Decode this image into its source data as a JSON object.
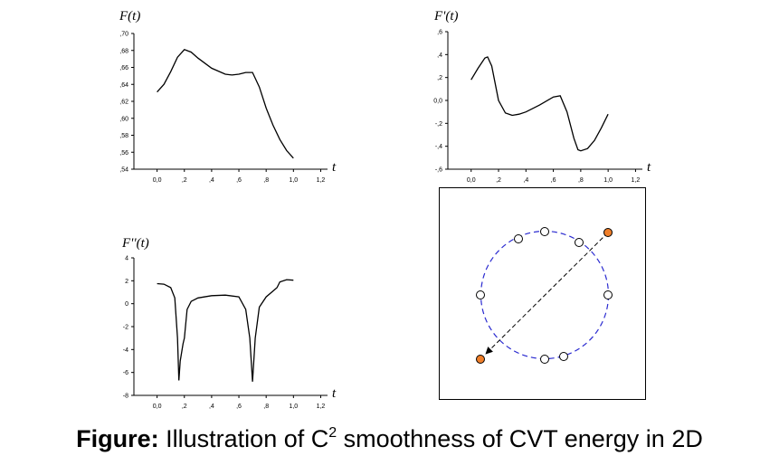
{
  "chart_data": [
    {
      "type": "line",
      "ylabel": "F(t)",
      "xlabel": "t",
      "x": [
        0,
        0.05,
        0.1,
        0.15,
        0.2,
        0.25,
        0.3,
        0.4,
        0.5,
        0.55,
        0.6,
        0.65,
        0.7,
        0.75,
        0.8,
        0.85,
        0.9,
        0.95,
        1.0
      ],
      "series": [
        {
          "color": "#000000",
          "values": [
            0.631,
            0.64,
            0.655,
            0.672,
            0.681,
            0.678,
            0.671,
            0.659,
            0.652,
            0.651,
            0.652,
            0.654,
            0.654,
            0.637,
            0.612,
            0.592,
            0.575,
            0.562,
            0.553
          ]
        }
      ],
      "xlim": [
        -0.17,
        1.25
      ],
      "xticks": [
        {
          "value": 0,
          "label": "0,0"
        },
        {
          "value": 0.2,
          "label": ",2"
        },
        {
          "value": 0.4,
          "label": ",4"
        },
        {
          "value": 0.6,
          "label": ",6"
        },
        {
          "value": 0.8,
          "label": ",8"
        },
        {
          "value": 1.0,
          "label": "1,0"
        },
        {
          "value": 1.2,
          "label": "1,2"
        }
      ],
      "ylim": [
        0.54,
        0.7
      ],
      "yticks": [
        {
          "value": 0.54,
          "label": ",54"
        },
        {
          "value": 0.56,
          "label": ",56"
        },
        {
          "value": 0.58,
          "label": ",58"
        },
        {
          "value": 0.6,
          "label": ",60"
        },
        {
          "value": 0.62,
          "label": ",62"
        },
        {
          "value": 0.64,
          "label": ",64"
        },
        {
          "value": 0.66,
          "label": ",66"
        },
        {
          "value": 0.68,
          "label": ",68"
        },
        {
          "value": 0.7,
          "label": ",70"
        }
      ]
    },
    {
      "type": "line",
      "ylabel": "F'(t)",
      "xlabel": "t",
      "x": [
        0,
        0.05,
        0.1,
        0.12,
        0.15,
        0.2,
        0.25,
        0.3,
        0.35,
        0.4,
        0.5,
        0.6,
        0.65,
        0.7,
        0.75,
        0.78,
        0.8,
        0.85,
        0.9,
        0.95,
        1.0
      ],
      "series": [
        {
          "color": "#000000",
          "values": [
            0.18,
            0.28,
            0.37,
            0.38,
            0.3,
            0.0,
            -0.11,
            -0.13,
            -0.12,
            -0.1,
            -0.04,
            0.03,
            0.04,
            -0.1,
            -0.33,
            -0.43,
            -0.44,
            -0.42,
            -0.35,
            -0.24,
            -0.12
          ]
        }
      ],
      "xlim": [
        -0.17,
        1.25
      ],
      "xticks": [
        {
          "value": 0,
          "label": "0,0"
        },
        {
          "value": 0.2,
          "label": ",2"
        },
        {
          "value": 0.4,
          "label": ",4"
        },
        {
          "value": 0.6,
          "label": ",6"
        },
        {
          "value": 0.8,
          "label": ",8"
        },
        {
          "value": 1.0,
          "label": "1,0"
        },
        {
          "value": 1.2,
          "label": "1,2"
        }
      ],
      "ylim": [
        -0.6,
        0.6
      ],
      "yticks": [
        {
          "value": -0.6,
          "label": "-,6"
        },
        {
          "value": -0.4,
          "label": "-,4"
        },
        {
          "value": -0.2,
          "label": "-,2"
        },
        {
          "value": 0,
          "label": "0,0"
        },
        {
          "value": 0.2,
          "label": ",2"
        },
        {
          "value": 0.4,
          "label": ",4"
        },
        {
          "value": 0.6,
          "label": ",6"
        }
      ]
    },
    {
      "type": "line",
      "ylabel": "F''(t)",
      "xlabel": "t",
      "x": [
        0,
        0.05,
        0.1,
        0.13,
        0.15,
        0.16,
        0.17,
        0.19,
        0.2,
        0.22,
        0.25,
        0.3,
        0.4,
        0.5,
        0.6,
        0.65,
        0.68,
        0.7,
        0.72,
        0.75,
        0.8,
        0.85,
        0.88,
        0.9,
        0.95,
        1.0
      ],
      "series": [
        {
          "color": "#000000",
          "values": [
            1.75,
            1.7,
            1.4,
            0.5,
            -3,
            -6.7,
            -5,
            -3.5,
            -3,
            -0.5,
            0.2,
            0.5,
            0.7,
            0.75,
            0.6,
            -0.5,
            -3,
            -6.8,
            -3,
            -0.3,
            0.6,
            1.1,
            1.4,
            1.9,
            2.1,
            2.05
          ]
        }
      ],
      "xlim": [
        -0.17,
        1.25
      ],
      "xticks": [
        {
          "value": 0,
          "label": "0,0"
        },
        {
          "value": 0.2,
          "label": ",2"
        },
        {
          "value": 0.4,
          "label": ",4"
        },
        {
          "value": 0.6,
          "label": ",6"
        },
        {
          "value": 0.8,
          "label": ",8"
        },
        {
          "value": 1.0,
          "label": "1,0"
        },
        {
          "value": 1.2,
          "label": "1,2"
        }
      ],
      "ylim": [
        -8,
        4
      ],
      "yticks": [
        -8,
        -6,
        -4,
        -2,
        0,
        2,
        4
      ]
    }
  ],
  "caption": {
    "label": "Figure:",
    "text": " Illustration of C",
    "superscript": "2",
    "text_end": " smoothness of CVT energy in 2D"
  }
}
